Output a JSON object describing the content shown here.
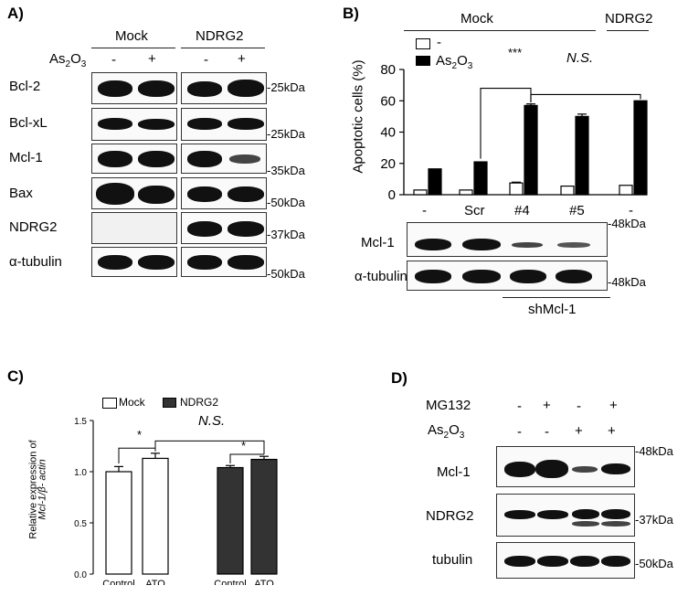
{
  "panels": {
    "a": "A)",
    "b": "B)",
    "c": "C)",
    "d": "D)"
  },
  "panel_a": {
    "groups": [
      "Mock",
      "NDRG2"
    ],
    "treatment_label": "As2O3",
    "treatment_marks": [
      "-",
      "+",
      "-",
      "+"
    ],
    "rows": [
      {
        "label": "Bcl-2",
        "marker": "-25kDa"
      },
      {
        "label": "Bcl-xL",
        "marker": "-25kDa"
      },
      {
        "label": "Mcl-1",
        "marker": "-35kDa"
      },
      {
        "label": "Bax",
        "marker": "-50kDa"
      },
      {
        "label": "NDRG2",
        "marker": "-37kDa"
      },
      {
        "label": "α-tubulin",
        "marker": "-50kDa"
      }
    ]
  },
  "panel_b": {
    "group_mock": "Mock",
    "group_ndrg2": "NDRG2",
    "ylabel": "Apoptotic cells (%)",
    "legend": [
      "-",
      "As2O3"
    ],
    "sig_1": "***",
    "sig_2": "N.S.",
    "categories": [
      "-",
      "Scr",
      "#4",
      "#5",
      "-"
    ],
    "blot_rows": [
      {
        "label": "Mcl-1",
        "marker": "-48kDa"
      },
      {
        "label": "α-tubulin",
        "marker": "-48kDa"
      }
    ],
    "shmcl_label": "shMcl-1",
    "chart_data": {
      "type": "bar",
      "categories": [
        "-",
        "Scr",
        "#4",
        "#5",
        "-"
      ],
      "series": [
        {
          "name": "-",
          "values": [
            3,
            3,
            7.5,
            5.5,
            6
          ],
          "errors": [
            0,
            0,
            0.5,
            0,
            0
          ],
          "color": "#ffffff"
        },
        {
          "name": "As2O3",
          "values": [
            16.5,
            21,
            57,
            50,
            60
          ],
          "errors": [
            0,
            0,
            1,
            1.5,
            0
          ],
          "color": "#000000"
        }
      ],
      "ylim": [
        0,
        80
      ],
      "yticks": [
        0,
        20,
        40,
        60,
        80
      ],
      "ylabel": "Apoptotic cells (%)"
    }
  },
  "panel_c": {
    "legend": [
      "Mock",
      "NDRG2"
    ],
    "ylabel_1": "Relative expression of",
    "ylabel_2": "Mcl-1/β- actin",
    "sig_1": "*",
    "sig_2": "N.S.",
    "sig_3": "*",
    "chart_data": {
      "type": "bar",
      "categories": [
        "Control",
        "ATO",
        "Control",
        "ATO"
      ],
      "values": [
        1.0,
        1.13,
        1.04,
        1.12
      ],
      "errors": [
        0.05,
        0.05,
        0.02,
        0.03
      ],
      "colors": [
        "#ffffff",
        "#ffffff",
        "#333333",
        "#333333"
      ],
      "ylim": [
        0,
        1.5
      ],
      "yticks": [
        "0.0",
        "0.5",
        "1.0",
        "1.5"
      ]
    }
  },
  "panel_d": {
    "conditions": [
      {
        "label": "MG132",
        "marks": [
          "-",
          "+",
          "-",
          "+"
        ]
      },
      {
        "label": "As2O3",
        "marks": [
          "-",
          "-",
          "+",
          "+"
        ]
      }
    ],
    "rows": [
      {
        "label": "Mcl-1",
        "marker": "-48kDa"
      },
      {
        "label": "NDRG2",
        "marker": "-37kDa"
      },
      {
        "label": "tubulin",
        "marker": "-50kDa"
      }
    ]
  }
}
